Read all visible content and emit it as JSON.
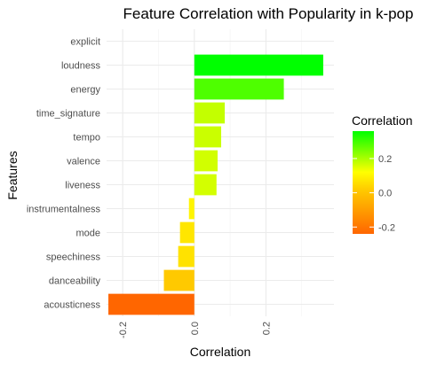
{
  "chart_data": {
    "type": "bar",
    "orientation": "horizontal",
    "title": "Feature Correlation with Popularity in k-pop",
    "xlabel": "Correlation",
    "ylabel": "Features",
    "xlim": [
      -0.245,
      0.39
    ],
    "x_ticks": [
      -0.2,
      0.0,
      0.2
    ],
    "x_tick_labels": [
      "-0.2",
      "0.0",
      "0.2"
    ],
    "categories": [
      "explicit",
      "loudness",
      "energy",
      "time_signature",
      "tempo",
      "valence",
      "liveness",
      "instrumentalness",
      "mode",
      "speechiness",
      "danceability",
      "acousticness"
    ],
    "values": [
      0.0,
      0.36,
      0.25,
      0.085,
      0.075,
      0.065,
      0.062,
      -0.015,
      -0.04,
      -0.045,
      -0.085,
      -0.24
    ],
    "grid": true,
    "legend": {
      "title": "Correlation",
      "placement": "right",
      "ticks": [
        0.2,
        0.0,
        -0.2
      ],
      "tick_labels": [
        "0.2",
        "0.0",
        "-0.2"
      ],
      "range": [
        -0.24,
        0.36
      ],
      "colors": [
        "#ff6600",
        "#ffff00",
        "#00ff00"
      ]
    }
  }
}
